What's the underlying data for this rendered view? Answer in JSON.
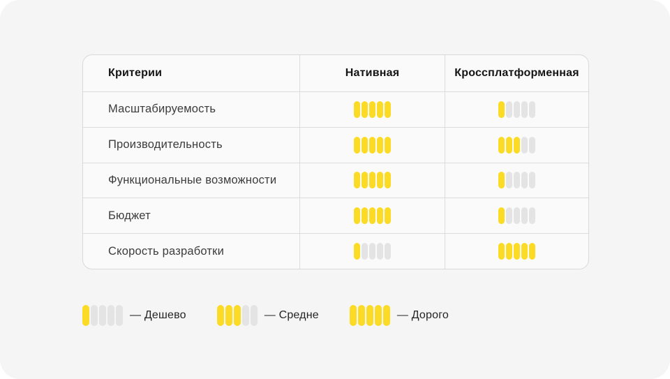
{
  "table": {
    "headers": [
      "Критерии",
      "Нативная",
      "Кроссплатформенная"
    ],
    "scale_max": 5,
    "rows": [
      {
        "label": "Масштабируемость",
        "native": 5,
        "cross": 1
      },
      {
        "label": "Производительность",
        "native": 5,
        "cross": 3
      },
      {
        "label": "Функциональные возможности",
        "native": 5,
        "cross": 1
      },
      {
        "label": "Бюджет",
        "native": 5,
        "cross": 1
      },
      {
        "label": "Скорость разработки",
        "native": 1,
        "cross": 5
      }
    ]
  },
  "legend": {
    "items": [
      {
        "value": 1,
        "label": "— Дешево"
      },
      {
        "value": 3,
        "label": "— Средне"
      },
      {
        "value": 5,
        "label": "— Дорого"
      }
    ]
  },
  "colors": {
    "rating_active": "#fbdb25",
    "rating_inactive": "#e4e4e4"
  },
  "chart_data": {
    "type": "table",
    "title": "",
    "categories": [
      "Масштабируемость",
      "Производительность",
      "Функциональные возможности",
      "Бюджет",
      "Скорость разработки"
    ],
    "series": [
      {
        "name": "Нативная",
        "values": [
          5,
          5,
          5,
          5,
          1
        ]
      },
      {
        "name": "Кроссплатформенная",
        "values": [
          1,
          3,
          1,
          1,
          5
        ]
      }
    ],
    "value_range": [
      0,
      5
    ],
    "legend": [
      {
        "value": 1,
        "meaning": "Дешево"
      },
      {
        "value": 3,
        "meaning": "Средне"
      },
      {
        "value": 5,
        "meaning": "Дорого"
      }
    ],
    "legend_position": "bottom-left"
  }
}
